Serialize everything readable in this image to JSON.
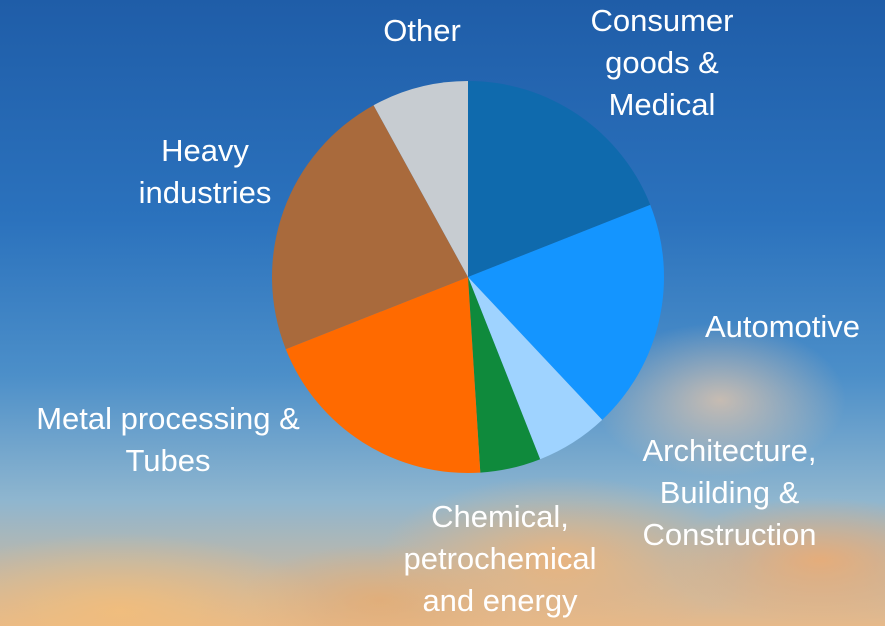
{
  "chart_data": {
    "type": "pie",
    "categories": [
      "Consumer goods & Medical",
      "Automotive",
      "Architecture, Building & Construction",
      "Chemical, petrochemical and energy",
      "Metal processing & Tubes",
      "Heavy industries",
      "Other"
    ],
    "values": [
      19,
      19,
      6,
      5,
      20,
      23,
      8
    ],
    "colors": [
      "#0f6aad",
      "#1495ff",
      "#9fd3ff",
      "#0f8a3c",
      "#ff6a00",
      "#a96a3c",
      "#c7ccd1"
    ]
  }
}
